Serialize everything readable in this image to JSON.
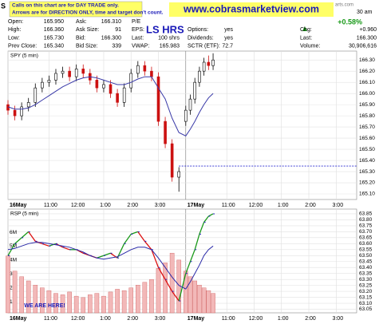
{
  "header": {
    "corner": "S",
    "notes": [
      "Calls on this chart are for DAY TRADE only.",
      "Arrows are for DIRECTION ONLY, time and target don't count."
    ],
    "website": "www.cobrasmarketview.com",
    "source_fragment": "arts.com",
    "time_fragment": "30 am",
    "change_pct": "+0.58%",
    "overlay": "LS HRS",
    "rows": [
      [
        [
          "Open:",
          "165.950"
        ],
        [
          "Ask:",
          "166.310"
        ],
        [
          "P/E"
        ]
      ],
      [
        [
          "High:",
          "166.360"
        ],
        [
          "Ask Size:",
          "91"
        ],
        [
          "EPS:"
        ],
        [
          "Options:",
          "yes"
        ],
        [
          "Chg:",
          "+0.960"
        ]
      ],
      [
        [
          "Low:",
          "165.730"
        ],
        [
          "Bid:",
          "166.300"
        ],
        [
          "Last:",
          "100 shrs"
        ],
        [
          "Dividends:",
          "yes"
        ],
        [
          "Last:",
          "166.300"
        ]
      ],
      [
        [
          "Prev Close:",
          "165.340"
        ],
        [
          "Bid Size:",
          "339"
        ],
        [
          "VWAP:",
          "165.983"
        ],
        [
          "SCTR (ETF):",
          "72.7"
        ],
        [
          "Volume:",
          "30,906,616"
        ]
      ]
    ],
    "callout": "WE ARE HERE!"
  },
  "chart_data": [
    {
      "type": "ohlc",
      "title": "SPY (5 min)",
      "x": [
        0,
        3,
        6,
        9,
        12,
        15,
        18,
        21,
        24,
        27,
        30,
        33,
        36,
        39,
        42,
        45,
        48,
        51,
        54,
        57,
        60,
        63,
        66,
        69,
        72,
        75,
        78,
        80,
        82,
        84,
        86,
        88,
        90
      ],
      "open": [
        165.9,
        165.85,
        165.8,
        165.88,
        165.92,
        166.05,
        166.1,
        166.12,
        166.18,
        166.2,
        166.15,
        166.22,
        166.18,
        166.12,
        166.05,
        166.08,
        166.0,
        165.92,
        166.05,
        166.18,
        166.25,
        166.2,
        166.15,
        165.75,
        165.55,
        165.25,
        165.75,
        165.85,
        165.95,
        166.1,
        166.2,
        166.28,
        166.25
      ],
      "high": [
        165.94,
        165.89,
        165.92,
        165.96,
        166.09,
        166.14,
        166.16,
        166.22,
        166.24,
        166.24,
        166.26,
        166.26,
        166.22,
        166.16,
        166.12,
        166.12,
        166.04,
        166.09,
        166.22,
        166.29,
        166.29,
        166.24,
        166.19,
        165.79,
        165.59,
        165.34,
        165.89,
        165.99,
        166.14,
        166.24,
        166.32,
        166.34,
        166.36
      ],
      "low": [
        165.81,
        165.76,
        165.76,
        165.84,
        165.88,
        166.01,
        166.06,
        166.08,
        166.14,
        166.11,
        166.11,
        166.14,
        166.08,
        166.01,
        166.01,
        165.96,
        165.88,
        165.88,
        166.01,
        166.14,
        166.16,
        166.11,
        165.71,
        165.51,
        165.21,
        165.12,
        165.71,
        165.81,
        165.91,
        166.06,
        166.16,
        166.21,
        166.21
      ],
      "close": [
        165.85,
        165.8,
        165.88,
        165.92,
        166.05,
        166.1,
        166.12,
        166.18,
        166.2,
        166.15,
        166.22,
        166.18,
        166.12,
        166.05,
        166.08,
        166.0,
        165.92,
        166.05,
        166.18,
        166.25,
        166.2,
        166.15,
        165.75,
        165.55,
        165.25,
        165.3,
        165.85,
        165.95,
        166.1,
        166.2,
        166.28,
        166.25,
        166.3
      ],
      "up_color": "#000000",
      "down_color": "#cc1111",
      "series": [
        {
          "color": "#3a3aa8",
          "values": [
            165.88,
            165.86,
            165.86,
            165.87,
            165.9,
            165.94,
            165.98,
            166.02,
            166.06,
            166.09,
            166.12,
            166.14,
            166.15,
            166.14,
            166.12,
            166.1,
            166.08,
            166.08,
            166.1,
            166.13,
            166.15,
            166.15,
            166.05,
            165.95,
            165.78,
            165.65,
            165.62,
            165.68,
            165.75,
            165.83,
            165.9,
            165.96,
            166.0
          ]
        }
      ],
      "hline": {
        "value": 165.35,
        "from": 75,
        "color": "#2a2ad0"
      },
      "xlim": [
        0,
        153
      ],
      "xticks": [
        {
          "value": 0,
          "label": "16May"
        },
        {
          "value": 18,
          "label": "11:00"
        },
        {
          "value": 30,
          "label": "12:00"
        },
        {
          "value": 42,
          "label": "1:00"
        },
        {
          "value": 54,
          "label": "2:00"
        },
        {
          "value": 66,
          "label": "3:00"
        },
        {
          "value": 78,
          "label": "17May"
        },
        {
          "value": 96,
          "label": "11:00"
        },
        {
          "value": 108,
          "label": "12:00"
        },
        {
          "value": 120,
          "label": "1:00"
        },
        {
          "value": 132,
          "label": "2:00"
        },
        {
          "value": 144,
          "label": "3:00"
        }
      ],
      "ylim": [
        165.05,
        166.38
      ],
      "yticks": [
        {
          "value": 166.3,
          "label": "166.30"
        },
        {
          "value": 166.2,
          "label": "166.20"
        },
        {
          "value": 166.1,
          "label": "166.10"
        },
        {
          "value": 166,
          "label": "166.00"
        },
        {
          "value": 165.9,
          "label": "165.90"
        },
        {
          "value": 165.8,
          "label": "165.80"
        },
        {
          "value": 165.7,
          "label": "165.70"
        },
        {
          "value": 165.6,
          "label": "165.60"
        },
        {
          "value": 165.5,
          "label": "165.50"
        },
        {
          "value": 165.4,
          "label": "165.40"
        },
        {
          "value": 165.3,
          "label": "165.30"
        },
        {
          "value": 165.2,
          "label": "165.20"
        },
        {
          "value": 165.1,
          "label": "165.10"
        }
      ],
      "grid": true
    },
    {
      "type": "line",
      "title": "RSP (5 min)",
      "x": [
        0,
        3,
        6,
        9,
        12,
        15,
        18,
        21,
        24,
        27,
        30,
        33,
        36,
        39,
        42,
        45,
        48,
        51,
        54,
        57,
        60,
        63,
        66,
        69,
        72,
        75,
        78,
        80,
        82,
        84,
        86,
        88,
        90
      ],
      "values": [
        63.5,
        63.6,
        63.65,
        63.7,
        63.62,
        63.6,
        63.58,
        63.6,
        63.57,
        63.55,
        63.55,
        63.52,
        63.5,
        63.48,
        63.5,
        63.52,
        63.48,
        63.6,
        63.68,
        63.7,
        63.62,
        63.55,
        63.4,
        63.3,
        63.2,
        63.12,
        63.35,
        63.45,
        63.55,
        63.68,
        63.78,
        63.83,
        63.85
      ],
      "up_color": "#1a9a1a",
      "down_color": "#dd1111",
      "series": [
        {
          "color": "#2a2aa8",
          "values": [
            63.55,
            63.56,
            63.58,
            63.6,
            63.61,
            63.61,
            63.6,
            63.59,
            63.58,
            63.57,
            63.55,
            63.53,
            63.5,
            63.48,
            63.47,
            63.48,
            63.49,
            63.52,
            63.55,
            63.57,
            63.57,
            63.55,
            63.48,
            63.4,
            63.32,
            63.25,
            63.22,
            63.28,
            63.35,
            63.42,
            63.5,
            63.55,
            63.58
          ]
        }
      ],
      "volume": {
        "values": [
          4.3,
          3.2,
          2.8,
          2.5,
          2.2,
          2.0,
          1.8,
          1.6,
          1.5,
          1.7,
          1.4,
          1.3,
          1.5,
          1.6,
          1.4,
          1.7,
          1.9,
          1.8,
          2.0,
          2.2,
          2.4,
          2.6,
          3.4,
          3.8,
          4.5,
          4.0,
          3.2,
          2.8,
          2.5,
          2.2,
          2.0,
          1.8,
          1.6
        ],
        "color": "#f2b8b8",
        "stroke": "#d06060"
      },
      "xlim": [
        0,
        153
      ],
      "xticks": [
        {
          "value": 0,
          "label": "16May"
        },
        {
          "value": 18,
          "label": "11:00"
        },
        {
          "value": 30,
          "label": "12:00"
        },
        {
          "value": 42,
          "label": "1:00"
        },
        {
          "value": 54,
          "label": "2:00"
        },
        {
          "value": 66,
          "label": "3:00"
        },
        {
          "value": 78,
          "label": "17May"
        },
        {
          "value": 96,
          "label": "11:00"
        },
        {
          "value": 108,
          "label": "12:00"
        },
        {
          "value": 120,
          "label": "1:00"
        },
        {
          "value": 132,
          "label": "2:00"
        },
        {
          "value": 144,
          "label": "3:00"
        }
      ],
      "ylim": [
        63.02,
        63.89
      ],
      "yticks": [
        63.85,
        {
          "value": 63.8,
          "label": "63.80"
        },
        63.75,
        {
          "value": 63.7,
          "label": "63.70"
        },
        63.65,
        {
          "value": 63.6,
          "label": "63.60"
        },
        63.55,
        {
          "value": 63.5,
          "label": "63.50"
        },
        63.45,
        {
          "value": 63.4,
          "label": "63.40"
        },
        63.35,
        {
          "value": 63.3,
          "label": "63.30"
        },
        63.25,
        {
          "value": 63.2,
          "label": "63.20"
        },
        63.15,
        {
          "value": 63.1,
          "label": "63.10"
        },
        63.05
      ],
      "y2lim": [
        0.2,
        7.67
      ],
      "y2ticks": [
        {
          "value": 1,
          "label": "1M"
        },
        {
          "value": 2,
          "label": "2M"
        },
        {
          "value": 3,
          "label": "3M"
        },
        {
          "value": 4,
          "label": "4M"
        },
        {
          "value": 5,
          "label": "5M"
        },
        {
          "value": 6,
          "label": "6M"
        }
      ],
      "grid": true
    }
  ]
}
